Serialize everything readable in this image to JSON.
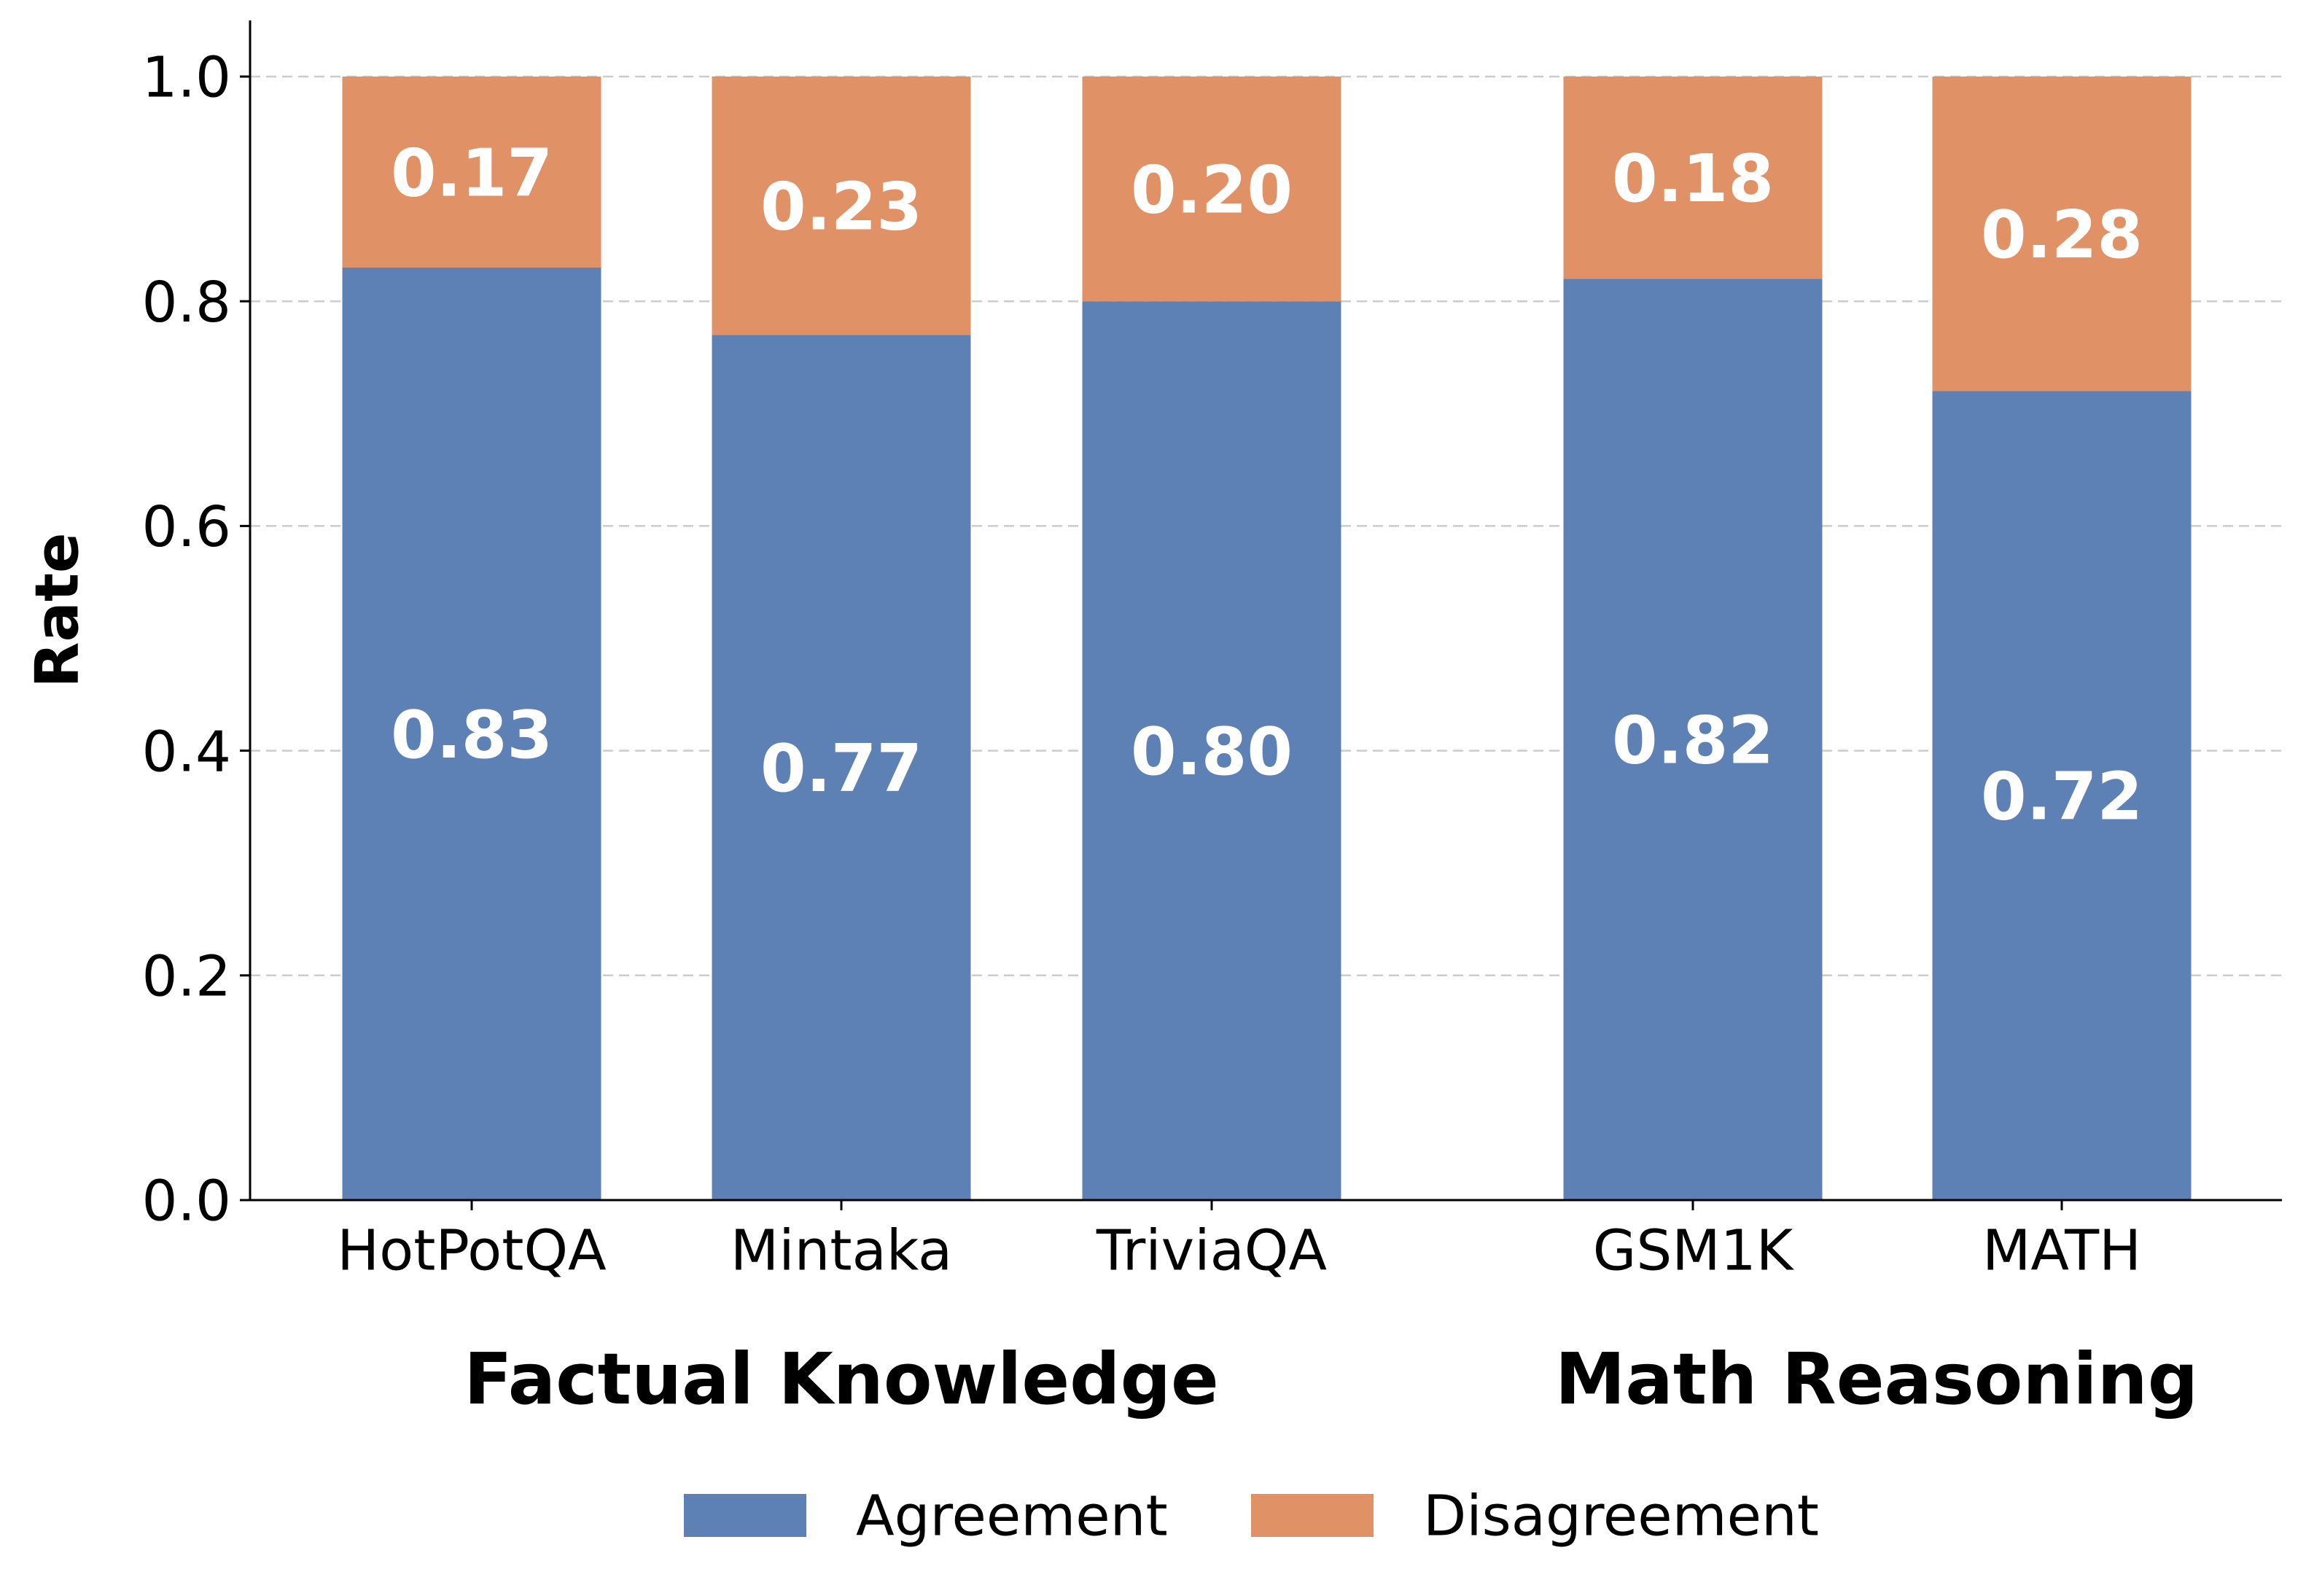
{
  "chart_data": {
    "type": "bar",
    "stacked": true,
    "title": "",
    "xlabel": "",
    "ylabel": "Rate",
    "ylim": [
      0,
      1.05
    ],
    "yticks": [
      "0.0",
      "0.2",
      "0.4",
      "0.6",
      "0.8",
      "1.0"
    ],
    "grid": "horizontal dashed",
    "categories": [
      "HotPotQA",
      "Mintaka",
      "TriviaQA",
      "GSM1K",
      "MATH"
    ],
    "groups": [
      {
        "label": "Factual Knowledge",
        "categories": [
          "HotPotQA",
          "Mintaka",
          "TriviaQA"
        ]
      },
      {
        "label": "Math Reasoning",
        "categories": [
          "GSM1K",
          "MATH"
        ]
      }
    ],
    "series": [
      {
        "name": "Agreement",
        "color": "#5e81b5",
        "values": [
          0.83,
          0.77,
          0.8,
          0.82,
          0.72
        ],
        "labels": [
          "0.83",
          "0.77",
          "0.80",
          "0.82",
          "0.72"
        ]
      },
      {
        "name": "Disagreement",
        "color": "#e09166",
        "values": [
          0.17,
          0.23,
          0.2,
          0.18,
          0.28
        ],
        "labels": [
          "0.17",
          "0.23",
          "0.20",
          "0.18",
          "0.28"
        ]
      }
    ],
    "legend": "bottom-center"
  }
}
